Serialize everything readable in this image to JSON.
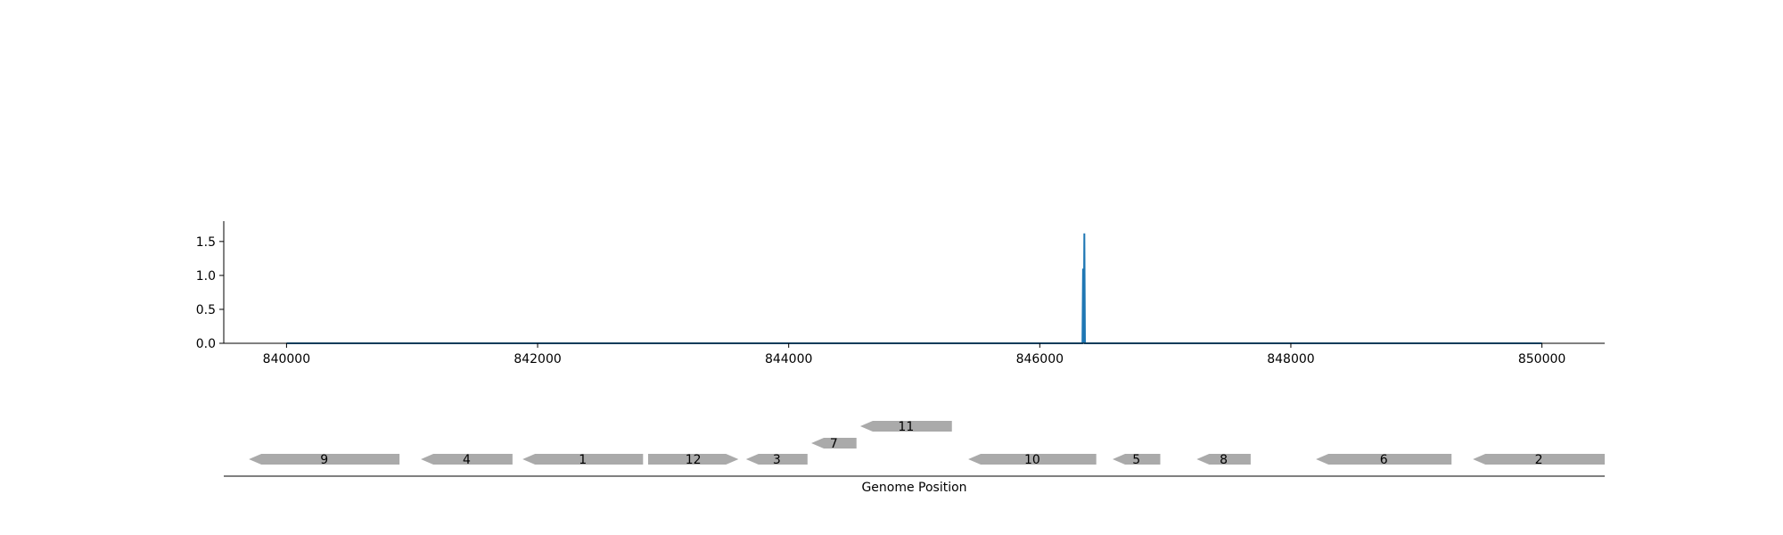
{
  "chart_data": [
    {
      "type": "line",
      "title": "",
      "xlabel": "",
      "ylabel": "",
      "xlim": [
        839500,
        850500
      ],
      "ylim": [
        0.0,
        1.8
      ],
      "x_ticks": [
        840000,
        842000,
        844000,
        846000,
        848000,
        850000
      ],
      "x_tick_labels": [
        "840000",
        "842000",
        "844000",
        "846000",
        "848000",
        "850000"
      ],
      "y_ticks": [
        0.0,
        0.5,
        1.0,
        1.5
      ],
      "y_tick_labels": [
        "0.0",
        "0.5",
        "1.0",
        "1.5"
      ],
      "grid": false,
      "series": [
        {
          "color": "#1f77b4",
          "x": [
            840000,
            846340,
            846345,
            846350,
            846355,
            846360,
            846365,
            850000
          ],
          "y": [
            0.0,
            0.0,
            1.1,
            0.0,
            1.62,
            0.0,
            0.0,
            0.0
          ]
        }
      ]
    },
    {
      "type": "gene-track",
      "xlabel": "Genome Position",
      "xlim": [
        839500,
        850500
      ],
      "feature_color": "#aaaaaa",
      "genes": [
        {
          "label": "9",
          "start": 839700,
          "end": 840900,
          "strand": "-",
          "row": 0
        },
        {
          "label": "4",
          "start": 841070,
          "end": 841800,
          "strand": "-",
          "row": 0
        },
        {
          "label": "1",
          "start": 841880,
          "end": 842840,
          "strand": "-",
          "row": 0
        },
        {
          "label": "12",
          "start": 842880,
          "end": 843600,
          "strand": "+",
          "row": 0
        },
        {
          "label": "3",
          "start": 843660,
          "end": 844150,
          "strand": "-",
          "row": 0
        },
        {
          "label": "7",
          "start": 844180,
          "end": 844540,
          "strand": "-",
          "row": 1
        },
        {
          "label": "11",
          "start": 844570,
          "end": 845300,
          "strand": "-",
          "row": 2
        },
        {
          "label": "10",
          "start": 845430,
          "end": 846450,
          "strand": "-",
          "row": 0
        },
        {
          "label": "5",
          "start": 846580,
          "end": 846960,
          "strand": "-",
          "row": 0
        },
        {
          "label": "8",
          "start": 847250,
          "end": 847680,
          "strand": "-",
          "row": 0
        },
        {
          "label": "6",
          "start": 848200,
          "end": 849280,
          "strand": "-",
          "row": 0
        },
        {
          "label": "2",
          "start": 849450,
          "end": 850500,
          "strand": "-",
          "row": 0
        }
      ]
    }
  ]
}
